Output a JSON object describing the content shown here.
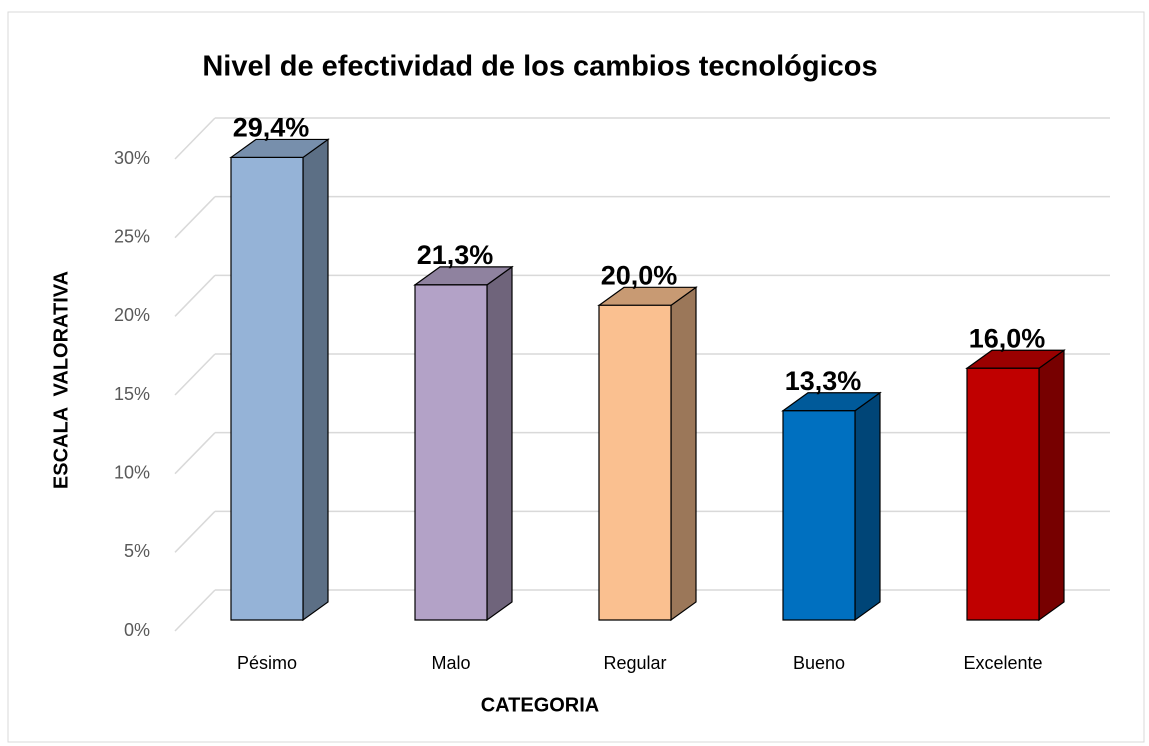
{
  "chart_data": {
    "type": "bar3d",
    "title": "Nivel de efectividad de los cambios tecnológicos",
    "xlabel": "CATEGORIA",
    "ylabel": "ESCALA  VALORATIVA",
    "categories": [
      "Pésimo",
      "Malo",
      "Regular",
      "Bueno",
      "Excelente"
    ],
    "values": [
      29.4,
      21.3,
      20.0,
      13.3,
      16.0
    ],
    "value_labels": [
      "29,4%",
      "21,3%",
      "20,0%",
      "13,3%",
      "16,0%"
    ],
    "colors": [
      "#95b3d7",
      "#b3a2c7",
      "#fac090",
      "#0070c0",
      "#c00000"
    ],
    "ylim": [
      0,
      30
    ],
    "yticks": [
      {
        "value": 0,
        "label": "0%"
      },
      {
        "value": 5,
        "label": "5%"
      },
      {
        "value": 10,
        "label": "10%"
      },
      {
        "value": 15,
        "label": "15%"
      },
      {
        "value": 20,
        "label": "20%"
      },
      {
        "value": 25,
        "label": "25%"
      },
      {
        "value": 30,
        "label": "30%"
      }
    ],
    "grid": true
  }
}
